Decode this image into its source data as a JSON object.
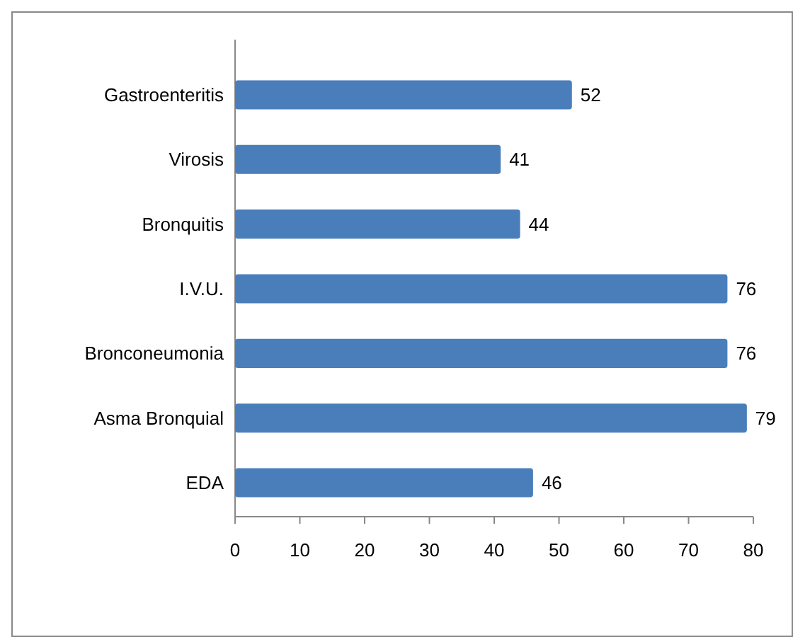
{
  "chart_data": {
    "type": "bar",
    "orientation": "horizontal",
    "categories": [
      "Gastroenteritis",
      "Virosis",
      "Bronquitis",
      "I.V.U.",
      "Bronconeumonia",
      "Asma Bronquial",
      "EDA"
    ],
    "values": [
      52,
      41,
      44,
      76,
      76,
      79,
      46
    ],
    "color": "#4a7ebb",
    "xlim": [
      0,
      80
    ],
    "xticks": [
      0,
      10,
      20,
      30,
      40,
      50,
      60,
      70,
      80
    ],
    "data_labels": true,
    "grid": false
  }
}
